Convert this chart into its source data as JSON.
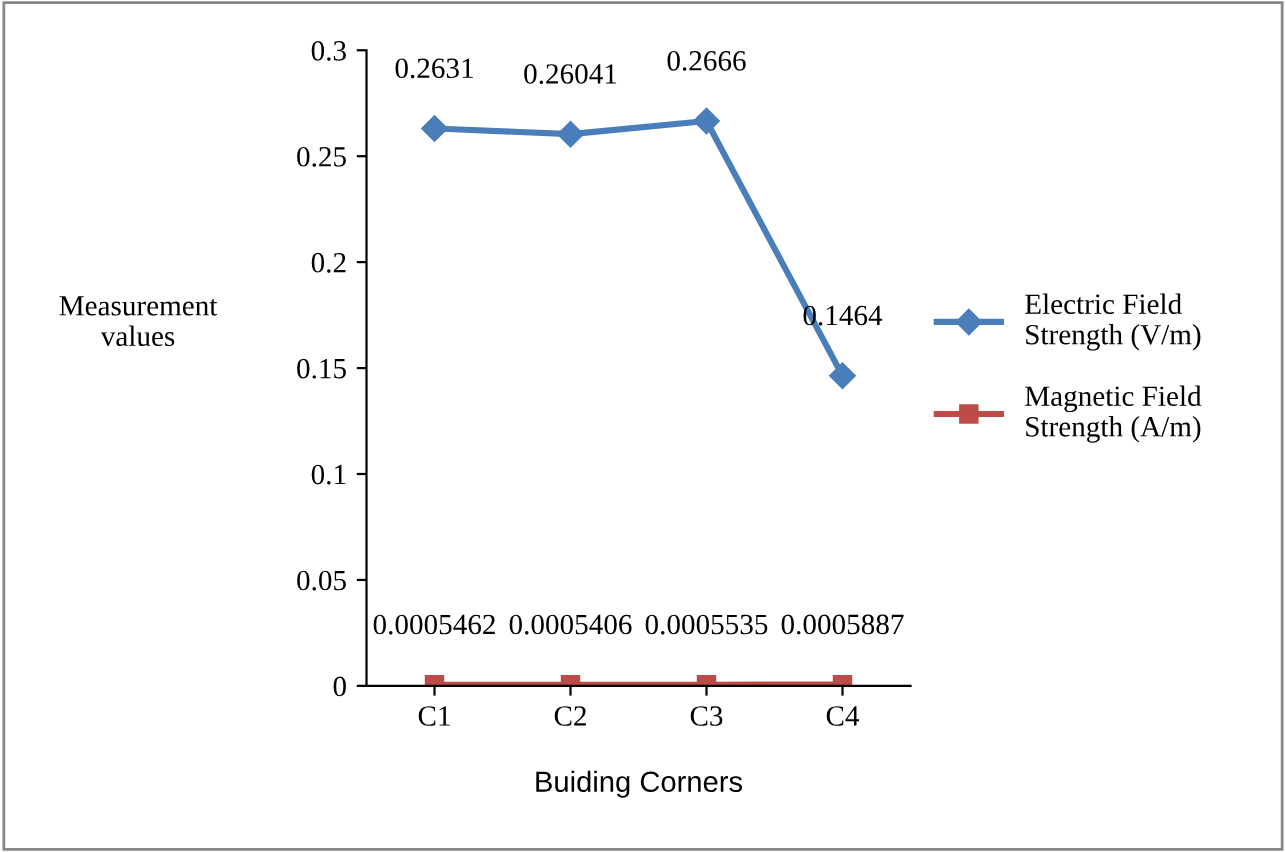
{
  "chart_data": {
    "type": "line",
    "xlabel": "Buiding Corners",
    "ylabel": "Measurement\nvalues",
    "categories": [
      "C1",
      "C2",
      "C3",
      "C4"
    ],
    "series": [
      {
        "name": "Electric Field Strength (V/m)",
        "color": "#4a7ebb",
        "marker": "diamond",
        "values": [
          0.2631,
          0.26041,
          0.2666,
          0.1464
        ]
      },
      {
        "name": "Magnetic Field Strength (A/m)",
        "color": "#be4b48",
        "marker": "square",
        "values": [
          0.0005462,
          0.0005406,
          0.0005535,
          0.0005887
        ]
      }
    ],
    "ylim": [
      0,
      0.3
    ],
    "yticks": [
      0,
      0.05,
      0.1,
      0.15,
      0.2,
      0.25,
      0.3
    ],
    "grid": false,
    "legend": "right",
    "data_labels": true
  }
}
